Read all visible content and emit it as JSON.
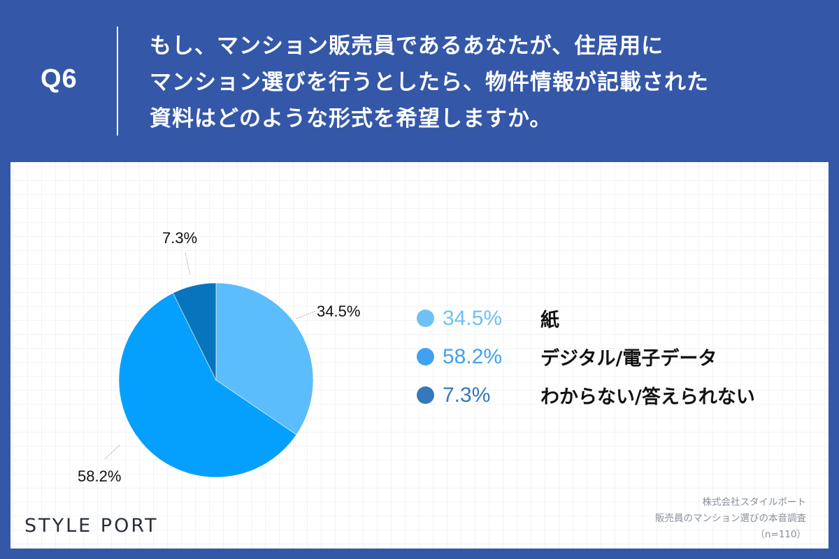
{
  "header": {
    "question_number": "Q6",
    "question_lines": [
      "もし、マンション販売員であるあなたが、住居用に",
      "マンション選びを行うとしたら、物件情報が記載された",
      "資料はどのような形式を希望しますか。"
    ]
  },
  "colors": {
    "background": "#3457a8",
    "card": "#ffffff",
    "paper": "#5bbdfc",
    "digital": "#05a0fd",
    "unknown": "#0874bd",
    "legend_paper": "#6ec0f5",
    "legend_digital": "#3fa1f0",
    "legend_unknown": "#3478bd"
  },
  "chart_data": {
    "type": "pie",
    "title": "もし、マンション販売員であるあなたが、住居用にマンション選びを行うとしたら、物件情報が記載された資料はどのような形式を希望しますか。",
    "categories": [
      "紙",
      "デジタル/電子データ",
      "わからない/答えられない"
    ],
    "values": [
      34.5,
      58.2,
      7.3
    ],
    "unit": "%",
    "start_angle": "12 o'clock, clockwise",
    "data_labels": [
      "34.5%",
      "58.2%",
      "7.3%"
    ],
    "legend_position": "right",
    "sample_size": "n=110"
  },
  "pie_labels": {
    "paper": "34.5%",
    "digital": "58.2%",
    "unknown": "7.3%"
  },
  "legend": [
    {
      "pct": "34.5%",
      "label": "紙"
    },
    {
      "pct": "58.2%",
      "label": "デジタル/電子データ"
    },
    {
      "pct": "7.3%",
      "label": "わからない/答えられない"
    }
  ],
  "footer": {
    "logo": "STYLE PORT",
    "source_lines": [
      "株式会社スタイルポート",
      "販売員のマンション選びの本音調査",
      "（n=110）"
    ]
  }
}
